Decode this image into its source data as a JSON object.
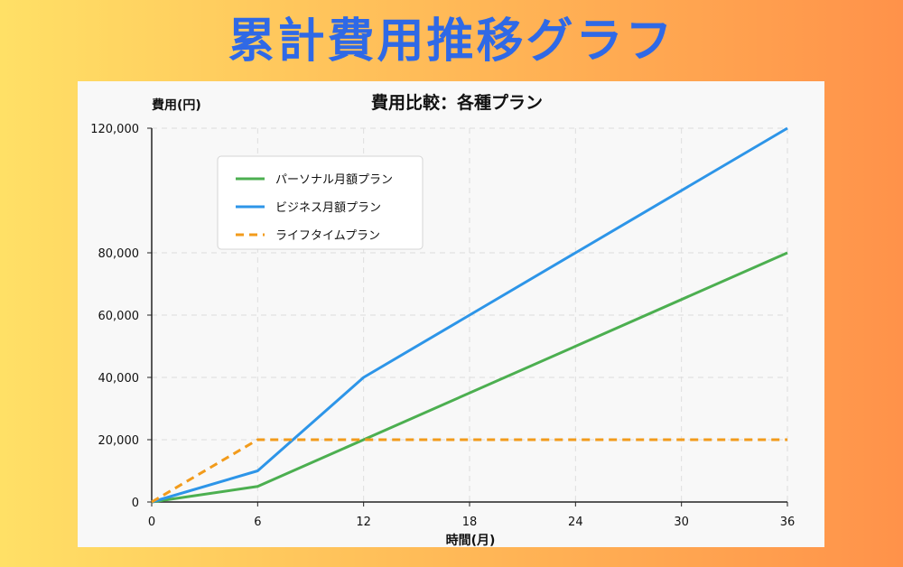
{
  "page": {
    "banner_title": "累計費用推移グラフ"
  },
  "colors": {
    "title": "#2f69e6",
    "personal": "#4caf50",
    "business": "#2d95e8",
    "lifetime": "#f29b1b"
  },
  "chart_data": {
    "type": "line",
    "title": "費用比較：各種プラン",
    "xlabel": "時間(月)",
    "ylabel": "費用(円)",
    "xlim": [
      0,
      36
    ],
    "ylim": [
      0,
      120000
    ],
    "x_ticks": [
      0,
      6,
      12,
      18,
      24,
      30,
      36
    ],
    "x_tick_labels": [
      "0",
      "6",
      "12",
      "18",
      "24",
      "30",
      "36"
    ],
    "y_ticks": [
      0,
      20000,
      40000,
      60000,
      80000,
      120000
    ],
    "y_tick_labels": [
      "0",
      "20,000",
      "40,000",
      "60,000",
      "80,000",
      "120,000"
    ],
    "grid": true,
    "legend_position": "top-left",
    "series": [
      {
        "name": "パーソナル月額プラン",
        "style": "solid",
        "color": "#4caf50",
        "x": [
          0,
          6,
          12,
          24,
          36
        ],
        "y": [
          0,
          5000,
          20000,
          50000,
          80000
        ]
      },
      {
        "name": "ビジネス月額プラン",
        "style": "solid",
        "color": "#2d95e8",
        "x": [
          0,
          6,
          12,
          24,
          36
        ],
        "y": [
          0,
          10000,
          40000,
          80000,
          120000
        ]
      },
      {
        "name": "ライフタイムプラン",
        "style": "dashed",
        "color": "#f29b1b",
        "x": [
          0,
          6,
          12,
          24,
          36
        ],
        "y": [
          0,
          20000,
          20000,
          20000,
          20000
        ]
      }
    ]
  }
}
